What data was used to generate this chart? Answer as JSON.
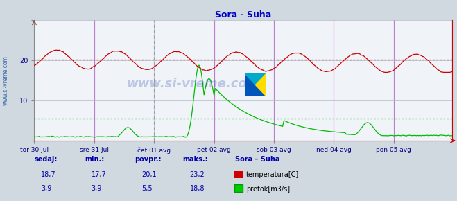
{
  "title": "Sora - Suha",
  "title_color": "#0000cc",
  "bg_color": "#d0d8e0",
  "plot_bg_color": "#f0f4f8",
  "grid_color": "#b0b8c8",
  "temp_color": "#cc0000",
  "flow_color": "#00bb00",
  "temp_avg_line": 20.1,
  "flow_avg_line": 5.5,
  "temp_avg_color": "#cc0000",
  "flow_avg_color": "#00aa00",
  "ylim": [
    0,
    30
  ],
  "xlabel_color": "#000080",
  "tick_labels": [
    "tor 30 jul",
    "sre 31 jul",
    "čet 01 avg",
    "pet 02 avg",
    "sob 03 avg",
    "ned 04 avg",
    "pon 05 avg"
  ],
  "tick_positions": [
    0,
    48,
    96,
    144,
    192,
    240,
    288
  ],
  "vline_color_major": "#cc00cc",
  "vline_color_minor": "#666666",
  "watermark": "www.si-vreme.com",
  "legend_title": "Sora – Suha",
  "legend_labels": [
    "temperatura[C]",
    "pretok[m3/s]"
  ],
  "legend_colors": [
    "#cc0000",
    "#00cc00"
  ],
  "stats_labels": [
    "sedaj:",
    "min.:",
    "povpr.:",
    "maks.:"
  ],
  "stats_temp": [
    "18,7",
    "17,7",
    "20,1",
    "23,2"
  ],
  "stats_flow": [
    "3,9",
    "3,9",
    "5,5",
    "18,8"
  ],
  "stats_color": "#0000aa",
  "arrow_color": "#cc0000",
  "num_points": 336,
  "logo_colors": [
    "#0055bb",
    "#00aacc",
    "#ffdd00"
  ]
}
